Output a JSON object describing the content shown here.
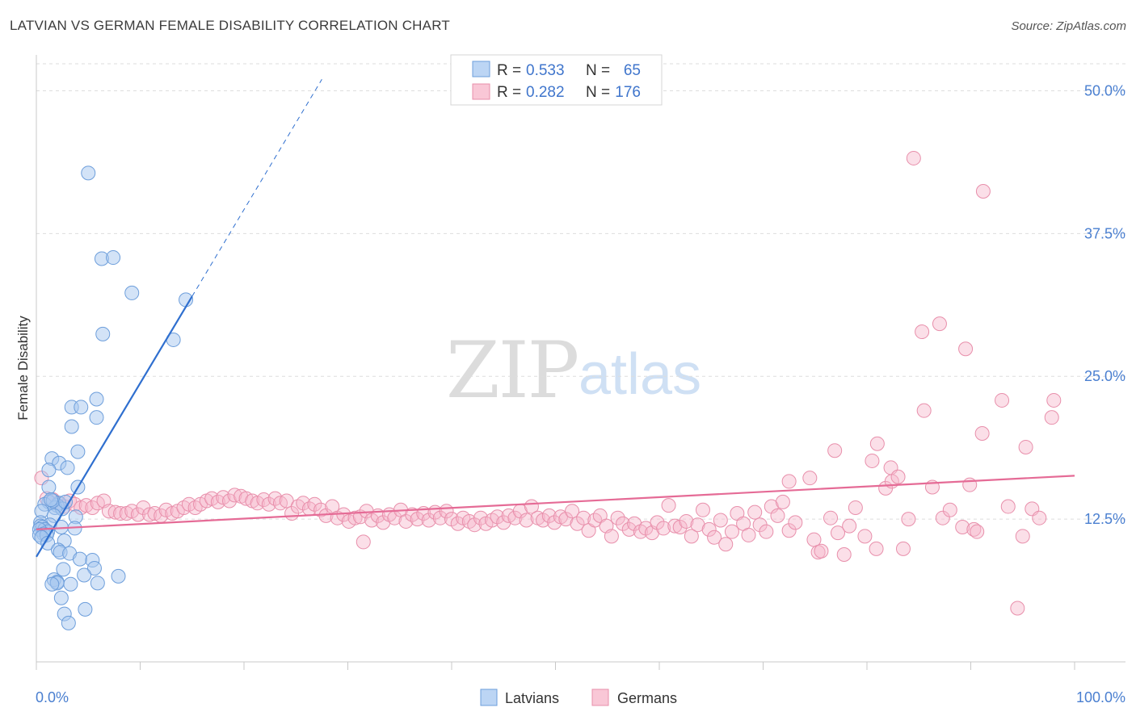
{
  "header": {
    "title": "LATVIAN VS GERMAN FEMALE DISABILITY CORRELATION CHART",
    "source": "Source: ZipAtlas.com"
  },
  "watermark": {
    "zip": "ZIP",
    "atlas": "atlas"
  },
  "legend_top": {
    "latvians": {
      "r_label": "R =",
      "r_value": "0.533",
      "n_label": "N =",
      "n_value": "65"
    },
    "germans": {
      "r_label": "R =",
      "r_value": "0.282",
      "n_label": "N =",
      "n_value": "176"
    }
  },
  "legend_bottom": {
    "latvians": "Latvians",
    "germans": "Germans"
  },
  "colors": {
    "latvians_fill": "#a8c8f0",
    "latvians_stroke": "#6d9edb",
    "latvians_line": "#2f6fcf",
    "germans_fill": "#f6b8cb",
    "germans_stroke": "#e88fab",
    "germans_line": "#e56b96",
    "tick_label": "#4a7fd0",
    "grid": "#dddddd"
  },
  "chart_data": {
    "type": "scatter",
    "title": "LATVIAN VS GERMAN FEMALE DISABILITY CORRELATION CHART",
    "xlabel": "",
    "ylabel": "Female Disability",
    "xlim": [
      0,
      100
    ],
    "ylim": [
      0,
      53
    ],
    "x_tick_labels": [
      {
        "value": 0,
        "label": "0.0%"
      },
      {
        "value": 100,
        "label": "100.0%"
      }
    ],
    "y_ticks": [
      {
        "value": 12.5,
        "label": "12.5%"
      },
      {
        "value": 25.0,
        "label": "25.0%"
      },
      {
        "value": 37.5,
        "label": "37.5%"
      },
      {
        "value": 50.0,
        "label": "50.0%"
      }
    ],
    "x_minor_ticks": [
      0,
      10,
      20,
      30,
      40,
      50,
      60,
      70,
      80,
      90,
      100
    ],
    "series": [
      {
        "name": "Latvians",
        "r": 0.533,
        "n": 65,
        "trend": {
          "x0": 0,
          "y0": 9.2,
          "x1": 15,
          "y1": 32.0,
          "dash_x1": 27.5,
          "dash_y1": 51.0
        },
        "points": [
          [
            5.0,
            42.8
          ],
          [
            6.3,
            35.3
          ],
          [
            7.4,
            35.4
          ],
          [
            9.2,
            32.3
          ],
          [
            14.4,
            31.7
          ],
          [
            6.4,
            28.7
          ],
          [
            13.2,
            28.2
          ],
          [
            5.8,
            23.0
          ],
          [
            3.4,
            22.3
          ],
          [
            4.3,
            22.3
          ],
          [
            5.8,
            21.4
          ],
          [
            3.4,
            20.6
          ],
          [
            4.0,
            18.4
          ],
          [
            1.5,
            17.8
          ],
          [
            2.2,
            17.4
          ],
          [
            1.2,
            16.8
          ],
          [
            3.0,
            17.0
          ],
          [
            1.2,
            15.3
          ],
          [
            4.0,
            15.3
          ],
          [
            1.2,
            14.0
          ],
          [
            2.2,
            13.9
          ],
          [
            0.8,
            13.8
          ],
          [
            2.0,
            13.7
          ],
          [
            1.8,
            13.5
          ],
          [
            2.5,
            13.4
          ],
          [
            0.5,
            13.2
          ],
          [
            1.7,
            12.8
          ],
          [
            3.8,
            12.7
          ],
          [
            0.4,
            12.2
          ],
          [
            1.3,
            12.0
          ],
          [
            0.4,
            11.9
          ],
          [
            0.6,
            11.8
          ],
          [
            0.8,
            11.6
          ],
          [
            1.1,
            11.4
          ],
          [
            0.3,
            11.6
          ],
          [
            2.4,
            11.8
          ],
          [
            3.7,
            11.7
          ],
          [
            0.7,
            11.2
          ],
          [
            0.3,
            11.1
          ],
          [
            1.0,
            11.1
          ],
          [
            0.5,
            10.9
          ],
          [
            1.1,
            10.4
          ],
          [
            2.7,
            10.6
          ],
          [
            2.1,
            9.8
          ],
          [
            2.3,
            9.6
          ],
          [
            3.2,
            9.5
          ],
          [
            4.2,
            9.0
          ],
          [
            5.4,
            8.9
          ],
          [
            2.6,
            8.1
          ],
          [
            5.6,
            8.2
          ],
          [
            4.6,
            7.6
          ],
          [
            7.9,
            7.5
          ],
          [
            1.7,
            7.2
          ],
          [
            2.0,
            7.0
          ],
          [
            2.0,
            6.9
          ],
          [
            1.5,
            6.8
          ],
          [
            3.3,
            6.8
          ],
          [
            5.9,
            6.9
          ],
          [
            2.4,
            5.6
          ],
          [
            4.7,
            4.6
          ],
          [
            2.7,
            4.2
          ],
          [
            3.1,
            3.4
          ],
          [
            1.6,
            14.1
          ],
          [
            1.4,
            14.2
          ],
          [
            2.8,
            14.0
          ]
        ]
      },
      {
        "name": "Germans",
        "r": 0.282,
        "n": 176,
        "trend": {
          "x0": 0,
          "y0": 11.6,
          "x1": 100,
          "y1": 16.3
        },
        "points": [
          [
            0.5,
            16.1
          ],
          [
            1.0,
            14.3
          ],
          [
            1.6,
            14.2
          ],
          [
            2.1,
            13.9
          ],
          [
            2.7,
            13.6
          ],
          [
            3.2,
            14.1
          ],
          [
            3.7,
            13.8
          ],
          [
            4.3,
            13.5
          ],
          [
            4.8,
            13.7
          ],
          [
            5.4,
            13.5
          ],
          [
            5.9,
            13.9
          ],
          [
            6.5,
            14.1
          ],
          [
            7.0,
            13.2
          ],
          [
            7.6,
            13.1
          ],
          [
            8.1,
            13.0
          ],
          [
            8.7,
            13.0
          ],
          [
            9.2,
            13.2
          ],
          [
            9.8,
            12.9
          ],
          [
            10.3,
            13.5
          ],
          [
            10.9,
            12.9
          ],
          [
            11.4,
            13.0
          ],
          [
            12.0,
            12.8
          ],
          [
            12.5,
            13.3
          ],
          [
            13.1,
            13.0
          ],
          [
            13.6,
            13.2
          ],
          [
            14.2,
            13.5
          ],
          [
            14.7,
            13.8
          ],
          [
            15.3,
            13.5
          ],
          [
            15.8,
            13.8
          ],
          [
            16.4,
            14.1
          ],
          [
            16.9,
            14.3
          ],
          [
            17.5,
            14.0
          ],
          [
            18.0,
            14.4
          ],
          [
            18.6,
            14.1
          ],
          [
            19.1,
            14.6
          ],
          [
            19.7,
            14.5
          ],
          [
            20.2,
            14.3
          ],
          [
            20.8,
            14.1
          ],
          [
            21.3,
            13.9
          ],
          [
            21.9,
            14.2
          ],
          [
            22.4,
            13.8
          ],
          [
            23.0,
            14.3
          ],
          [
            23.5,
            13.9
          ],
          [
            24.1,
            14.1
          ],
          [
            24.6,
            13.0
          ],
          [
            25.2,
            13.6
          ],
          [
            25.7,
            13.9
          ],
          [
            26.3,
            13.4
          ],
          [
            26.8,
            13.8
          ],
          [
            27.4,
            13.3
          ],
          [
            27.9,
            12.8
          ],
          [
            28.5,
            13.6
          ],
          [
            29.0,
            12.6
          ],
          [
            29.6,
            12.9
          ],
          [
            30.1,
            12.3
          ],
          [
            30.7,
            12.6
          ],
          [
            31.2,
            12.7
          ],
          [
            31.8,
            13.2
          ],
          [
            32.3,
            12.4
          ],
          [
            32.9,
            12.8
          ],
          [
            33.4,
            12.2
          ],
          [
            34.0,
            12.9
          ],
          [
            34.5,
            12.6
          ],
          [
            35.1,
            13.3
          ],
          [
            35.6,
            12.3
          ],
          [
            36.2,
            12.9
          ],
          [
            36.7,
            12.5
          ],
          [
            37.3,
            13.0
          ],
          [
            37.8,
            12.4
          ],
          [
            38.4,
            13.1
          ],
          [
            38.9,
            12.6
          ],
          [
            39.5,
            13.2
          ],
          [
            40.0,
            12.5
          ],
          [
            40.6,
            12.1
          ],
          [
            41.1,
            12.6
          ],
          [
            41.7,
            12.3
          ],
          [
            42.2,
            12.0
          ],
          [
            42.8,
            12.6
          ],
          [
            43.3,
            12.1
          ],
          [
            43.9,
            12.4
          ],
          [
            44.4,
            12.7
          ],
          [
            45.0,
            12.2
          ],
          [
            45.5,
            12.8
          ],
          [
            46.1,
            12.6
          ],
          [
            46.6,
            13.2
          ],
          [
            47.2,
            12.4
          ],
          [
            47.7,
            13.6
          ],
          [
            48.3,
            12.6
          ],
          [
            48.8,
            12.4
          ],
          [
            49.4,
            12.8
          ],
          [
            49.9,
            12.2
          ],
          [
            50.5,
            12.7
          ],
          [
            51.0,
            12.5
          ],
          [
            51.6,
            13.2
          ],
          [
            52.1,
            12.1
          ],
          [
            52.7,
            12.6
          ],
          [
            53.2,
            11.5
          ],
          [
            53.8,
            12.4
          ],
          [
            54.3,
            12.8
          ],
          [
            54.9,
            11.9
          ],
          [
            55.4,
            11.0
          ],
          [
            56.0,
            12.6
          ],
          [
            56.5,
            12.1
          ],
          [
            57.1,
            11.6
          ],
          [
            57.6,
            12.1
          ],
          [
            58.2,
            11.4
          ],
          [
            58.7,
            11.7
          ],
          [
            59.3,
            11.3
          ],
          [
            59.8,
            12.2
          ],
          [
            60.4,
            11.7
          ],
          [
            60.9,
            13.7
          ],
          [
            61.5,
            11.9
          ],
          [
            62.0,
            11.8
          ],
          [
            62.6,
            12.3
          ],
          [
            63.1,
            11.0
          ],
          [
            63.7,
            12.0
          ],
          [
            64.2,
            13.3
          ],
          [
            64.8,
            11.6
          ],
          [
            65.3,
            10.9
          ],
          [
            65.9,
            12.4
          ],
          [
            66.4,
            10.3
          ],
          [
            67.0,
            11.4
          ],
          [
            67.5,
            13.0
          ],
          [
            68.1,
            12.1
          ],
          [
            68.6,
            11.1
          ],
          [
            69.2,
            13.1
          ],
          [
            69.7,
            12.0
          ],
          [
            70.3,
            11.4
          ],
          [
            70.8,
            13.6
          ],
          [
            71.4,
            12.8
          ],
          [
            71.9,
            14.0
          ],
          [
            72.5,
            15.8
          ],
          [
            72.5,
            11.5
          ],
          [
            73.1,
            12.2
          ],
          [
            74.5,
            16.1
          ],
          [
            74.9,
            10.7
          ],
          [
            75.3,
            9.6
          ],
          [
            75.6,
            9.7
          ],
          [
            76.5,
            12.6
          ],
          [
            76.9,
            18.5
          ],
          [
            77.2,
            11.3
          ],
          [
            77.8,
            9.4
          ],
          [
            78.3,
            11.9
          ],
          [
            78.9,
            13.5
          ],
          [
            79.8,
            11.0
          ],
          [
            80.5,
            17.6
          ],
          [
            80.9,
            9.9
          ],
          [
            81.0,
            19.1
          ],
          [
            81.8,
            15.2
          ],
          [
            82.3,
            17.0
          ],
          [
            82.4,
            15.8
          ],
          [
            83.0,
            16.2
          ],
          [
            83.5,
            9.9
          ],
          [
            84.0,
            12.5
          ],
          [
            85.3,
            28.9
          ],
          [
            85.5,
            22.0
          ],
          [
            86.3,
            15.3
          ],
          [
            87.0,
            29.6
          ],
          [
            87.3,
            12.6
          ],
          [
            88.0,
            13.3
          ],
          [
            89.2,
            11.8
          ],
          [
            89.5,
            27.4
          ],
          [
            89.9,
            15.5
          ],
          [
            90.3,
            11.6
          ],
          [
            90.6,
            11.4
          ],
          [
            91.1,
            20.0
          ],
          [
            93.0,
            22.9
          ],
          [
            93.6,
            13.6
          ],
          [
            94.5,
            4.7
          ],
          [
            95.0,
            11.0
          ],
          [
            95.3,
            18.8
          ],
          [
            95.9,
            13.4
          ],
          [
            96.6,
            12.6
          ],
          [
            97.8,
            21.4
          ],
          [
            98.0,
            22.9
          ],
          [
            84.5,
            44.1
          ],
          [
            91.2,
            41.2
          ],
          [
            31.5,
            10.5
          ]
        ]
      }
    ]
  }
}
